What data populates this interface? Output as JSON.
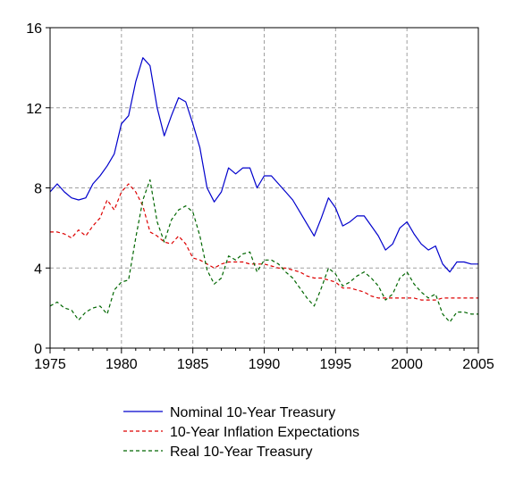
{
  "chart_data": {
    "type": "line",
    "title": "",
    "xlabel": "",
    "ylabel": "",
    "xlim": [
      1975,
      2005
    ],
    "ylim": [
      0,
      16
    ],
    "xticks": [
      1975,
      1980,
      1985,
      1990,
      1995,
      2000,
      2005
    ],
    "yticks": [
      0,
      4,
      8,
      12,
      16
    ],
    "grid": true,
    "legend_position": "bottom-center",
    "series": [
      {
        "name": "Nominal 10-Year Treasury",
        "color": "#0000cc",
        "style": "solid",
        "points": [
          [
            1975.0,
            7.8
          ],
          [
            1975.5,
            8.2
          ],
          [
            1976.0,
            7.8
          ],
          [
            1976.5,
            7.5
          ],
          [
            1977.0,
            7.4
          ],
          [
            1977.5,
            7.5
          ],
          [
            1978.0,
            8.2
          ],
          [
            1978.5,
            8.6
          ],
          [
            1979.0,
            9.1
          ],
          [
            1979.5,
            9.7
          ],
          [
            1980.0,
            11.2
          ],
          [
            1980.5,
            11.6
          ],
          [
            1981.0,
            13.3
          ],
          [
            1981.5,
            14.5
          ],
          [
            1982.0,
            14.1
          ],
          [
            1982.5,
            12.0
          ],
          [
            1983.0,
            10.6
          ],
          [
            1983.5,
            11.6
          ],
          [
            1984.0,
            12.5
          ],
          [
            1984.5,
            12.3
          ],
          [
            1985.0,
            11.2
          ],
          [
            1985.5,
            10.0
          ],
          [
            1986.0,
            8.0
          ],
          [
            1986.5,
            7.3
          ],
          [
            1987.0,
            7.8
          ],
          [
            1987.5,
            9.0
          ],
          [
            1988.0,
            8.7
          ],
          [
            1988.5,
            9.0
          ],
          [
            1989.0,
            9.0
          ],
          [
            1989.5,
            8.0
          ],
          [
            1990.0,
            8.6
          ],
          [
            1990.5,
            8.6
          ],
          [
            1991.0,
            8.2
          ],
          [
            1991.5,
            7.8
          ],
          [
            1992.0,
            7.4
          ],
          [
            1992.5,
            6.8
          ],
          [
            1993.0,
            6.2
          ],
          [
            1993.5,
            5.6
          ],
          [
            1994.0,
            6.5
          ],
          [
            1994.5,
            7.5
          ],
          [
            1995.0,
            7.0
          ],
          [
            1995.5,
            6.1
          ],
          [
            1996.0,
            6.3
          ],
          [
            1996.5,
            6.6
          ],
          [
            1997.0,
            6.6
          ],
          [
            1997.5,
            6.1
          ],
          [
            1998.0,
            5.6
          ],
          [
            1998.5,
            4.9
          ],
          [
            1999.0,
            5.2
          ],
          [
            1999.5,
            6.0
          ],
          [
            2000.0,
            6.3
          ],
          [
            2000.5,
            5.7
          ],
          [
            2001.0,
            5.2
          ],
          [
            2001.5,
            4.9
          ],
          [
            2002.0,
            5.1
          ],
          [
            2002.5,
            4.2
          ],
          [
            2003.0,
            3.8
          ],
          [
            2003.5,
            4.3
          ],
          [
            2004.0,
            4.3
          ],
          [
            2004.5,
            4.2
          ],
          [
            2005.0,
            4.2
          ]
        ]
      },
      {
        "name": "10-Year Inflation Expectations",
        "color": "#dd0000",
        "style": "dashed",
        "points": [
          [
            1975.0,
            5.8
          ],
          [
            1975.5,
            5.8
          ],
          [
            1976.0,
            5.7
          ],
          [
            1976.5,
            5.5
          ],
          [
            1977.0,
            5.9
          ],
          [
            1977.5,
            5.6
          ],
          [
            1978.0,
            6.1
          ],
          [
            1978.5,
            6.5
          ],
          [
            1979.0,
            7.4
          ],
          [
            1979.5,
            6.9
          ],
          [
            1980.0,
            7.8
          ],
          [
            1980.5,
            8.2
          ],
          [
            1981.0,
            7.8
          ],
          [
            1981.5,
            7.1
          ],
          [
            1982.0,
            5.8
          ],
          [
            1982.5,
            5.6
          ],
          [
            1983.0,
            5.3
          ],
          [
            1983.5,
            5.2
          ],
          [
            1984.0,
            5.6
          ],
          [
            1984.5,
            5.2
          ],
          [
            1985.0,
            4.5
          ],
          [
            1985.5,
            4.4
          ],
          [
            1986.0,
            4.2
          ],
          [
            1986.5,
            4.0
          ],
          [
            1987.0,
            4.2
          ],
          [
            1987.5,
            4.3
          ],
          [
            1988.0,
            4.3
          ],
          [
            1988.5,
            4.3
          ],
          [
            1989.0,
            4.2
          ],
          [
            1989.5,
            4.2
          ],
          [
            1990.0,
            4.2
          ],
          [
            1990.5,
            4.1
          ],
          [
            1991.0,
            4.0
          ],
          [
            1991.5,
            4.0
          ],
          [
            1992.0,
            3.9
          ],
          [
            1992.5,
            3.8
          ],
          [
            1993.0,
            3.6
          ],
          [
            1993.5,
            3.5
          ],
          [
            1994.0,
            3.5
          ],
          [
            1994.5,
            3.4
          ],
          [
            1995.0,
            3.3
          ],
          [
            1995.5,
            3.0
          ],
          [
            1996.0,
            3.0
          ],
          [
            1996.5,
            2.9
          ],
          [
            1997.0,
            2.8
          ],
          [
            1997.5,
            2.6
          ],
          [
            1998.0,
            2.5
          ],
          [
            1998.5,
            2.5
          ],
          [
            1999.0,
            2.5
          ],
          [
            1999.5,
            2.5
          ],
          [
            2000.0,
            2.5
          ],
          [
            2000.5,
            2.5
          ],
          [
            2001.0,
            2.4
          ],
          [
            2001.5,
            2.4
          ],
          [
            2002.0,
            2.4
          ],
          [
            2002.5,
            2.5
          ],
          [
            2003.0,
            2.5
          ],
          [
            2003.5,
            2.5
          ],
          [
            2004.0,
            2.5
          ],
          [
            2004.5,
            2.5
          ],
          [
            2005.0,
            2.5
          ]
        ]
      },
      {
        "name": "Real 10-Year Treasury",
        "color": "#006600",
        "style": "dashed",
        "points": [
          [
            1975.0,
            2.1
          ],
          [
            1975.5,
            2.3
          ],
          [
            1976.0,
            2.0
          ],
          [
            1976.5,
            1.9
          ],
          [
            1977.0,
            1.4
          ],
          [
            1977.5,
            1.8
          ],
          [
            1978.0,
            2.0
          ],
          [
            1978.5,
            2.1
          ],
          [
            1979.0,
            1.7
          ],
          [
            1979.5,
            2.9
          ],
          [
            1980.0,
            3.3
          ],
          [
            1980.5,
            3.4
          ],
          [
            1981.0,
            5.5
          ],
          [
            1981.5,
            7.4
          ],
          [
            1982.0,
            8.4
          ],
          [
            1982.5,
            6.3
          ],
          [
            1983.0,
            5.3
          ],
          [
            1983.5,
            6.4
          ],
          [
            1984.0,
            6.9
          ],
          [
            1984.5,
            7.1
          ],
          [
            1985.0,
            6.8
          ],
          [
            1985.5,
            5.6
          ],
          [
            1986.0,
            3.9
          ],
          [
            1986.5,
            3.2
          ],
          [
            1987.0,
            3.5
          ],
          [
            1987.5,
            4.6
          ],
          [
            1988.0,
            4.4
          ],
          [
            1988.5,
            4.7
          ],
          [
            1989.0,
            4.8
          ],
          [
            1989.5,
            3.8
          ],
          [
            1990.0,
            4.4
          ],
          [
            1990.5,
            4.4
          ],
          [
            1991.0,
            4.2
          ],
          [
            1991.5,
            3.8
          ],
          [
            1992.0,
            3.5
          ],
          [
            1992.5,
            3.0
          ],
          [
            1993.0,
            2.5
          ],
          [
            1993.5,
            2.1
          ],
          [
            1994.0,
            3.0
          ],
          [
            1994.5,
            4.0
          ],
          [
            1995.0,
            3.7
          ],
          [
            1995.5,
            3.1
          ],
          [
            1996.0,
            3.3
          ],
          [
            1996.5,
            3.6
          ],
          [
            1997.0,
            3.8
          ],
          [
            1997.5,
            3.5
          ],
          [
            1998.0,
            3.1
          ],
          [
            1998.5,
            2.4
          ],
          [
            1999.0,
            2.7
          ],
          [
            1999.5,
            3.5
          ],
          [
            2000.0,
            3.8
          ],
          [
            2000.5,
            3.2
          ],
          [
            2001.0,
            2.8
          ],
          [
            2001.5,
            2.5
          ],
          [
            2002.0,
            2.7
          ],
          [
            2002.5,
            1.7
          ],
          [
            2003.0,
            1.3
          ],
          [
            2003.5,
            1.8
          ],
          [
            2004.0,
            1.8
          ],
          [
            2004.5,
            1.7
          ],
          [
            2005.0,
            1.7
          ]
        ]
      }
    ]
  }
}
